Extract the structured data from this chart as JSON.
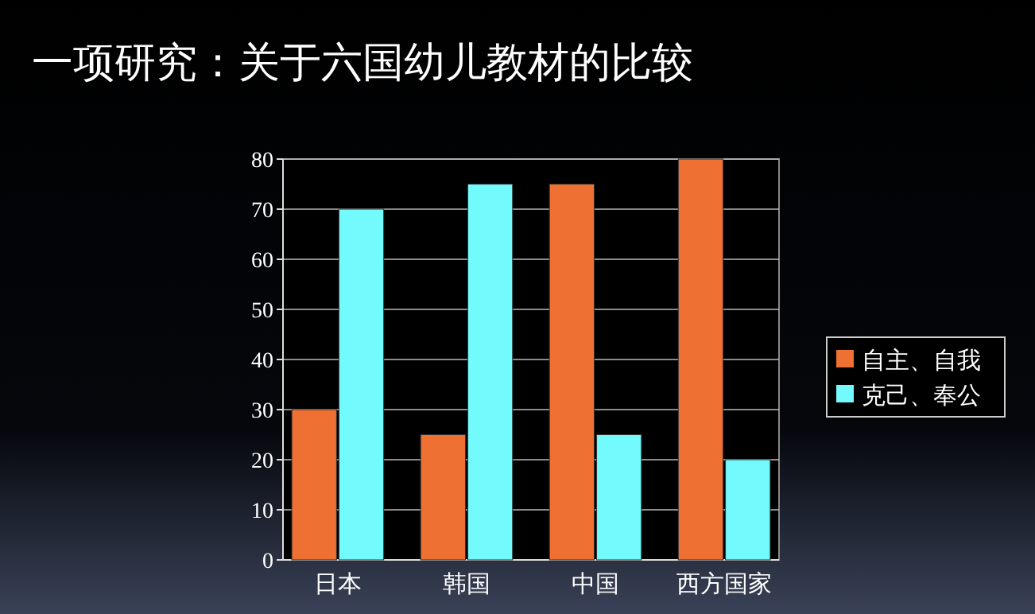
{
  "chart_data": {
    "type": "bar",
    "title": "一项研究：关于六国幼儿教材的比较",
    "categories": [
      "日本",
      "韩国",
      "中国",
      "西方国家"
    ],
    "series": [
      {
        "name": "自主、自我",
        "color": "#ee7032",
        "values": [
          30,
          25,
          75,
          80
        ]
      },
      {
        "name": "克己、奉公",
        "color": "#72fafc",
        "values": [
          70,
          75,
          25,
          20
        ]
      }
    ],
    "ylim": [
      0,
      80
    ],
    "yticks": [
      0,
      10,
      20,
      30,
      40,
      50,
      60,
      70,
      80
    ],
    "grid": "y",
    "legend": "right"
  }
}
